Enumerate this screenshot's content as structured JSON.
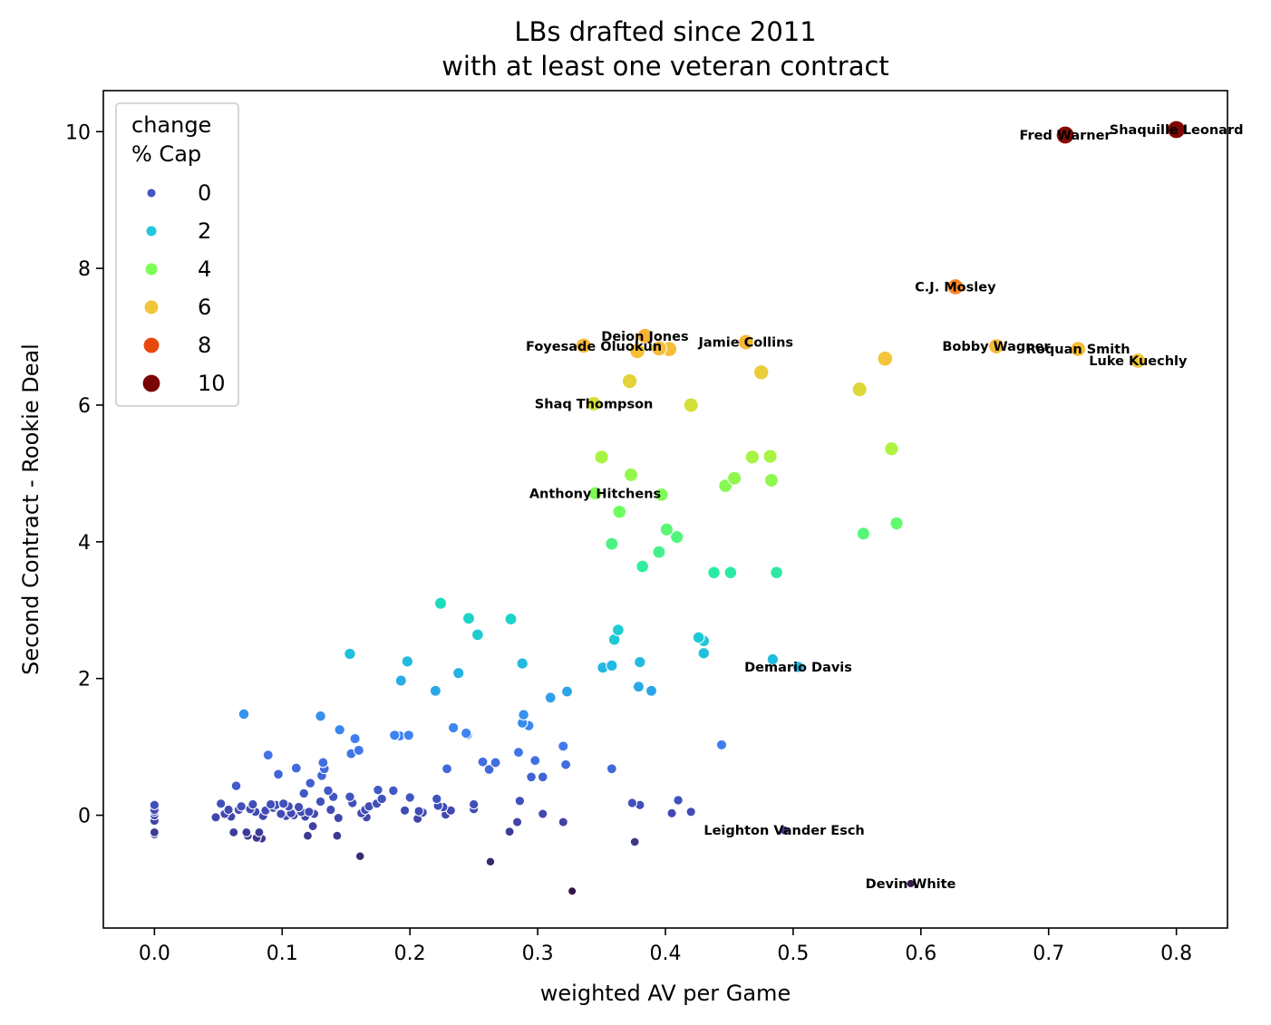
{
  "chart_data": {
    "type": "scatter",
    "title": "LBs drafted since 2011",
    "subtitle": "with at least one veteran contract",
    "xlabel": "weighted AV per Game",
    "ylabel": "Second Contract - Rookie Deal",
    "xlim": [
      -0.04,
      0.84
    ],
    "ylim": [
      -1.65,
      10.6
    ],
    "xticks": [
      0.0,
      0.1,
      0.2,
      0.3,
      0.4,
      0.5,
      0.6,
      0.7,
      0.8
    ],
    "xtick_labels": [
      "0.0",
      "0.1",
      "0.2",
      "0.3",
      "0.4",
      "0.5",
      "0.6",
      "0.7",
      "0.8"
    ],
    "yticks": [
      0,
      2,
      4,
      6,
      8,
      10
    ],
    "ytick_labels": [
      "0",
      "2",
      "4",
      "6",
      "8",
      "10"
    ],
    "grid": false,
    "hue_size_variable": "change % Cap",
    "legend": {
      "title_line1": "change",
      "title_line2": "% Cap",
      "placement": "upper-left",
      "entries": [
        {
          "label": "0",
          "value": 0,
          "color": "#4454c4"
        },
        {
          "label": "2",
          "value": 2,
          "color": "#1fc8de"
        },
        {
          "label": "4",
          "value": 4,
          "color": "#7bff55"
        },
        {
          "label": "6",
          "value": 6,
          "color": "#f2c53a"
        },
        {
          "label": "8",
          "value": 8,
          "color": "#e8480e"
        },
        {
          "label": "10",
          "value": 10,
          "color": "#7a0403"
        }
      ]
    },
    "points": [
      {
        "x": 0.0,
        "y": 0.15
      },
      {
        "x": 0.0,
        "y": 0.08
      },
      {
        "x": 0.0,
        "y": 0.0
      },
      {
        "x": 0.0,
        "y": -0.08
      },
      {
        "x": 0.0,
        "y": -0.25
      },
      {
        "x": 0.0,
        "y": -0.28
      },
      {
        "x": 0.0,
        "y": 0.05
      },
      {
        "x": 0.048,
        "y": -0.03
      },
      {
        "x": 0.052,
        "y": 0.17
      },
      {
        "x": 0.055,
        "y": 0.02
      },
      {
        "x": 0.058,
        "y": 0.08
      },
      {
        "x": 0.06,
        "y": -0.02
      },
      {
        "x": 0.062,
        "y": -0.25
      },
      {
        "x": 0.064,
        "y": 0.43
      },
      {
        "x": 0.066,
        "y": 0.08
      },
      {
        "x": 0.068,
        "y": 0.13
      },
      {
        "x": 0.07,
        "y": 1.48
      },
      {
        "x": 0.072,
        "y": -0.25
      },
      {
        "x": 0.073,
        "y": -0.3
      },
      {
        "x": 0.075,
        "y": 0.09
      },
      {
        "x": 0.077,
        "y": 0.16
      },
      {
        "x": 0.079,
        "y": 0.05
      },
      {
        "x": 0.08,
        "y": -0.33
      },
      {
        "x": 0.082,
        "y": -0.25
      },
      {
        "x": 0.084,
        "y": -0.34
      },
      {
        "x": 0.085,
        "y": -0.01
      },
      {
        "x": 0.087,
        "y": 0.07
      },
      {
        "x": 0.089,
        "y": 0.88
      },
      {
        "x": 0.091,
        "y": 0.16
      },
      {
        "x": 0.093,
        "y": 0.11
      },
      {
        "x": 0.095,
        "y": 0.15
      },
      {
        "x": 0.097,
        "y": 0.6
      },
      {
        "x": 0.099,
        "y": 0.02
      },
      {
        "x": 0.101,
        "y": 0.17
      },
      {
        "x": 0.103,
        "y": -0.01
      },
      {
        "x": 0.105,
        "y": 0.13
      },
      {
        "x": 0.107,
        "y": 0.03
      },
      {
        "x": 0.109,
        "y": 0.0
      },
      {
        "x": 0.111,
        "y": 0.69
      },
      {
        "x": 0.113,
        "y": 0.12
      },
      {
        "x": 0.115,
        "y": 0.05
      },
      {
        "x": 0.117,
        "y": 0.32
      },
      {
        "x": 0.118,
        "y": -0.02
      },
      {
        "x": 0.12,
        "y": -0.3
      },
      {
        "x": 0.121,
        "y": 0.05
      },
      {
        "x": 0.122,
        "y": 0.47
      },
      {
        "x": 0.124,
        "y": -0.16
      },
      {
        "x": 0.125,
        "y": 0.02
      },
      {
        "x": 0.13,
        "y": 0.2
      },
      {
        "x": 0.13,
        "y": 1.45
      },
      {
        "x": 0.131,
        "y": 0.58
      },
      {
        "x": 0.132,
        "y": 0.77
      },
      {
        "x": 0.133,
        "y": 0.68
      },
      {
        "x": 0.136,
        "y": 0.36
      },
      {
        "x": 0.138,
        "y": 0.08
      },
      {
        "x": 0.14,
        "y": 0.27
      },
      {
        "x": 0.143,
        "y": -0.3
      },
      {
        "x": 0.144,
        "y": -0.04
      },
      {
        "x": 0.145,
        "y": 1.25
      },
      {
        "x": 0.153,
        "y": 2.36
      },
      {
        "x": 0.153,
        "y": 0.27
      },
      {
        "x": 0.154,
        "y": 0.9
      },
      {
        "x": 0.155,
        "y": 0.18
      },
      {
        "x": 0.157,
        "y": 1.12
      },
      {
        "x": 0.16,
        "y": 0.95
      },
      {
        "x": 0.161,
        "y": -0.6
      },
      {
        "x": 0.162,
        "y": 0.03
      },
      {
        "x": 0.165,
        "y": 0.08
      },
      {
        "x": 0.166,
        "y": -0.03
      },
      {
        "x": 0.168,
        "y": 0.13
      },
      {
        "x": 0.174,
        "y": 0.17
      },
      {
        "x": 0.175,
        "y": 0.37
      },
      {
        "x": 0.178,
        "y": 0.24
      },
      {
        "x": 0.187,
        "y": 0.36
      },
      {
        "x": 0.188,
        "y": 1.17
      },
      {
        "x": 0.192,
        "y": 1.16
      },
      {
        "x": 0.193,
        "y": 1.97
      },
      {
        "x": 0.196,
        "y": 0.07
      },
      {
        "x": 0.198,
        "y": 2.25
      },
      {
        "x": 0.199,
        "y": 1.17
      },
      {
        "x": 0.2,
        "y": 0.26
      },
      {
        "x": 0.206,
        "y": -0.05
      },
      {
        "x": 0.207,
        "y": 0.06
      },
      {
        "x": 0.21,
        "y": 0.04
      },
      {
        "x": 0.22,
        "y": 1.82
      },
      {
        "x": 0.221,
        "y": 0.24
      },
      {
        "x": 0.222,
        "y": 0.14
      },
      {
        "x": 0.224,
        "y": 3.1
      },
      {
        "x": 0.226,
        "y": 0.12
      },
      {
        "x": 0.228,
        "y": 0.01
      },
      {
        "x": 0.229,
        "y": 0.68
      },
      {
        "x": 0.232,
        "y": 0.07
      },
      {
        "x": 0.234,
        "y": 1.28
      },
      {
        "x": 0.238,
        "y": 2.08
      },
      {
        "x": 0.244,
        "y": 1.2
      },
      {
        "x": 0.245,
        "y": 1.18
      },
      {
        "x": 0.246,
        "y": 2.88
      },
      {
        "x": 0.25,
        "y": 0.16
      },
      {
        "x": 0.25,
        "y": 0.09
      },
      {
        "x": 0.253,
        "y": 2.64
      },
      {
        "x": 0.257,
        "y": 0.78
      },
      {
        "x": 0.262,
        "y": 0.67
      },
      {
        "x": 0.263,
        "y": -0.68
      },
      {
        "x": 0.267,
        "y": 0.77
      },
      {
        "x": 0.278,
        "y": -0.24
      },
      {
        "x": 0.279,
        "y": 2.87
      },
      {
        "x": 0.284,
        "y": -0.1
      },
      {
        "x": 0.285,
        "y": 0.92
      },
      {
        "x": 0.286,
        "y": 0.21
      },
      {
        "x": 0.288,
        "y": 1.35
      },
      {
        "x": 0.288,
        "y": 2.22
      },
      {
        "x": 0.289,
        "y": 1.47
      },
      {
        "x": 0.293,
        "y": 1.31
      },
      {
        "x": 0.295,
        "y": 0.56
      },
      {
        "x": 0.298,
        "y": 0.8
      },
      {
        "x": 0.304,
        "y": 0.02
      },
      {
        "x": 0.304,
        "y": 0.56
      },
      {
        "x": 0.31,
        "y": 1.72
      },
      {
        "x": 0.32,
        "y": 1.01
      },
      {
        "x": 0.32,
        "y": -0.1
      },
      {
        "x": 0.322,
        "y": 0.74
      },
      {
        "x": 0.323,
        "y": 1.81
      },
      {
        "x": 0.327,
        "y": -1.11
      },
      {
        "x": 0.345,
        "y": 4.71
      },
      {
        "x": 0.35,
        "y": 5.24
      },
      {
        "x": 0.351,
        "y": 2.16
      },
      {
        "x": 0.358,
        "y": 3.97
      },
      {
        "x": 0.358,
        "y": 2.19
      },
      {
        "x": 0.358,
        "y": 0.68
      },
      {
        "x": 0.36,
        "y": 2.57
      },
      {
        "x": 0.363,
        "y": 2.71
      },
      {
        "x": 0.364,
        "y": 4.44
      },
      {
        "x": 0.373,
        "y": 4.98
      },
      {
        "x": 0.374,
        "y": 0.18
      },
      {
        "x": 0.376,
        "y": -0.39
      },
      {
        "x": 0.379,
        "y": 1.88
      },
      {
        "x": 0.38,
        "y": 2.24
      },
      {
        "x": 0.38,
        "y": 0.15
      },
      {
        "x": 0.382,
        "y": 3.64
      },
      {
        "x": 0.389,
        "y": 1.82
      },
      {
        "x": 0.395,
        "y": 3.85
      },
      {
        "x": 0.397,
        "y": 4.69
      },
      {
        "x": 0.401,
        "y": 4.18
      },
      {
        "x": 0.405,
        "y": 0.03
      },
      {
        "x": 0.409,
        "y": 4.07
      },
      {
        "x": 0.41,
        "y": 0.22
      },
      {
        "x": 0.42,
        "y": 0.05
      },
      {
        "x": 0.426,
        "y": 2.6
      },
      {
        "x": 0.43,
        "y": 2.55
      },
      {
        "x": 0.43,
        "y": 2.37
      },
      {
        "x": 0.438,
        "y": 3.55
      },
      {
        "x": 0.444,
        "y": 1.03
      },
      {
        "x": 0.447,
        "y": 4.82
      },
      {
        "x": 0.451,
        "y": 3.55
      },
      {
        "x": 0.454,
        "y": 4.93
      },
      {
        "x": 0.468,
        "y": 5.24
      },
      {
        "x": 0.482,
        "y": 5.25
      },
      {
        "x": 0.483,
        "y": 4.9
      },
      {
        "x": 0.484,
        "y": 2.28
      },
      {
        "x": 0.487,
        "y": 3.55
      },
      {
        "x": 0.493,
        "y": -0.22
      },
      {
        "x": 0.504,
        "y": 2.17
      },
      {
        "x": 0.555,
        "y": 4.12
      },
      {
        "x": 0.577,
        "y": 5.36
      },
      {
        "x": 0.581,
        "y": 4.27
      },
      {
        "x": 0.592,
        "y": -1.0
      },
      {
        "x": 0.336,
        "y": 6.87
      },
      {
        "x": 0.344,
        "y": 6.02
      },
      {
        "x": 0.372,
        "y": 6.35
      },
      {
        "x": 0.378,
        "y": 6.79
      },
      {
        "x": 0.384,
        "y": 7.01
      },
      {
        "x": 0.395,
        "y": 6.83
      },
      {
        "x": 0.403,
        "y": 6.82
      },
      {
        "x": 0.42,
        "y": 6.0
      },
      {
        "x": 0.463,
        "y": 6.92
      },
      {
        "x": 0.475,
        "y": 6.48
      },
      {
        "x": 0.552,
        "y": 6.23
      },
      {
        "x": 0.572,
        "y": 6.68
      },
      {
        "x": 0.659,
        "y": 6.86
      },
      {
        "x": 0.723,
        "y": 6.82
      },
      {
        "x": 0.77,
        "y": 6.65
      },
      {
        "x": 0.627,
        "y": 7.73
      },
      {
        "x": 0.713,
        "y": 9.95
      },
      {
        "x": 0.8,
        "y": 10.03
      }
    ],
    "annotations": [
      {
        "text": "Shaquille Leonard",
        "x": 0.8,
        "y": 10.03
      },
      {
        "text": "Fred Warner",
        "x": 0.713,
        "y": 9.95
      },
      {
        "text": "C.J. Mosley",
        "x": 0.627,
        "y": 7.73
      },
      {
        "text": "Deion Jones",
        "x": 0.384,
        "y": 7.01
      },
      {
        "text": "Jamie Collins",
        "x": 0.463,
        "y": 6.92
      },
      {
        "text": "Foyesade Oluokun",
        "x": 0.344,
        "y": 6.86
      },
      {
        "text": "Bobby Wagner",
        "x": 0.659,
        "y": 6.86
      },
      {
        "text": "Roquan Smith",
        "x": 0.723,
        "y": 6.82
      },
      {
        "text": "Luke Kuechly",
        "x": 0.77,
        "y": 6.65
      },
      {
        "text": "Shaq Thompson",
        "x": 0.344,
        "y": 6.02
      },
      {
        "text": "Anthony Hitchens",
        "x": 0.345,
        "y": 4.71
      },
      {
        "text": "Demario Davis",
        "x": 0.504,
        "y": 2.17
      },
      {
        "text": "Leighton Vander Esch",
        "x": 0.493,
        "y": -0.22
      },
      {
        "text": "Devin White",
        "x": 0.592,
        "y": -1.0
      }
    ]
  }
}
